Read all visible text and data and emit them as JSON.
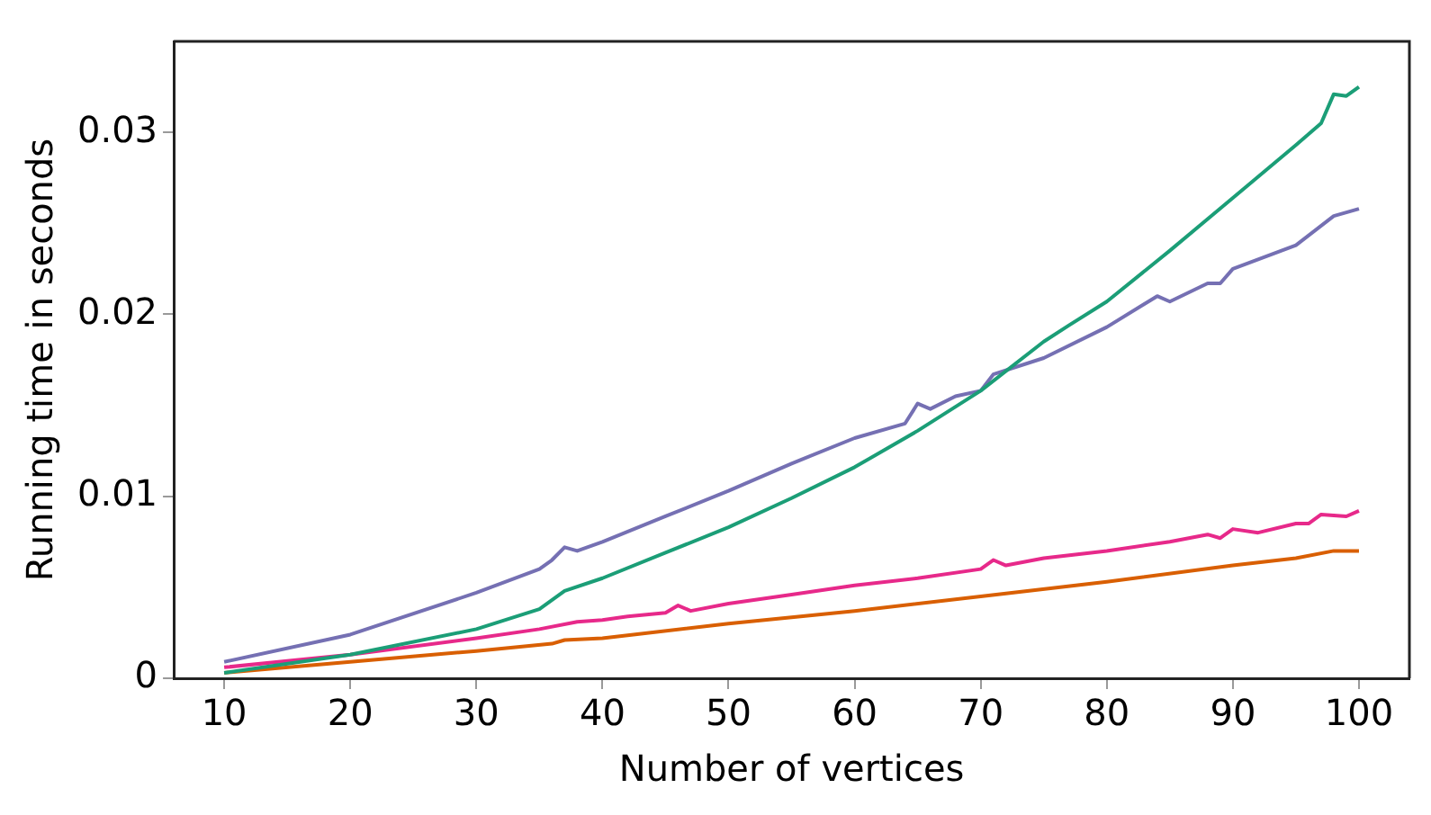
{
  "chart_data": {
    "type": "line",
    "xlabel": "Number of vertices",
    "ylabel": "Running time in seconds",
    "xlim": [
      6,
      104
    ],
    "xticks": [
      10,
      20,
      30,
      40,
      50,
      60,
      70,
      80,
      90,
      100
    ],
    "ylim": [
      0,
      0.035
    ],
    "yticks": [
      0,
      0.01,
      0.02,
      0.03
    ],
    "grid": false,
    "legend": false,
    "marker": "none",
    "line_style": "solid",
    "series": [
      {
        "color": "#1b9e77",
        "x": [
          10,
          20,
          30,
          35,
          37,
          40,
          45,
          50,
          55,
          60,
          65,
          70,
          75,
          77,
          80,
          85,
          90,
          95,
          97,
          98,
          99,
          100
        ],
        "values": [
          0.0003,
          0.0013,
          0.0027,
          0.0038,
          0.0048,
          0.0055,
          0.0069,
          0.0083,
          0.0099,
          0.0116,
          0.0136,
          0.0158,
          0.0185,
          0.0194,
          0.0207,
          0.0235,
          0.0264,
          0.0293,
          0.0305,
          0.0321,
          0.032,
          0.0325
        ]
      },
      {
        "color": "#7570b3",
        "x": [
          10,
          20,
          30,
          35,
          36,
          37,
          38,
          40,
          45,
          50,
          55,
          60,
          64,
          65,
          66,
          68,
          70,
          71,
          75,
          80,
          84,
          85,
          88,
          89,
          90,
          95,
          98,
          100
        ],
        "values": [
          0.0009,
          0.0024,
          0.0047,
          0.006,
          0.0065,
          0.0072,
          0.007,
          0.0075,
          0.0089,
          0.0103,
          0.0118,
          0.0132,
          0.014,
          0.0151,
          0.0148,
          0.0155,
          0.0158,
          0.0167,
          0.0176,
          0.0193,
          0.021,
          0.0207,
          0.0217,
          0.0217,
          0.0225,
          0.0238,
          0.0254,
          0.0258
        ]
      },
      {
        "color": "#e7298a",
        "x": [
          10,
          20,
          30,
          35,
          38,
          40,
          42,
          45,
          46,
          47,
          50,
          55,
          60,
          65,
          70,
          71,
          72,
          75,
          80,
          85,
          88,
          89,
          90,
          92,
          95,
          96,
          97,
          99,
          100
        ],
        "values": [
          0.0006,
          0.0013,
          0.0022,
          0.0027,
          0.0031,
          0.0032,
          0.0034,
          0.0036,
          0.004,
          0.0037,
          0.0041,
          0.0046,
          0.0051,
          0.0055,
          0.006,
          0.0065,
          0.0062,
          0.0066,
          0.007,
          0.0075,
          0.0079,
          0.0077,
          0.0082,
          0.008,
          0.0085,
          0.0085,
          0.009,
          0.0089,
          0.0092
        ]
      },
      {
        "color": "#d95f02",
        "x": [
          10,
          20,
          30,
          36,
          37,
          40,
          50,
          60,
          70,
          80,
          90,
          95,
          98,
          100
        ],
        "values": [
          0.0003,
          0.0009,
          0.0015,
          0.0019,
          0.0021,
          0.0022,
          0.003,
          0.0037,
          0.0045,
          0.0053,
          0.0062,
          0.0066,
          0.007,
          0.007
        ]
      }
    ]
  }
}
